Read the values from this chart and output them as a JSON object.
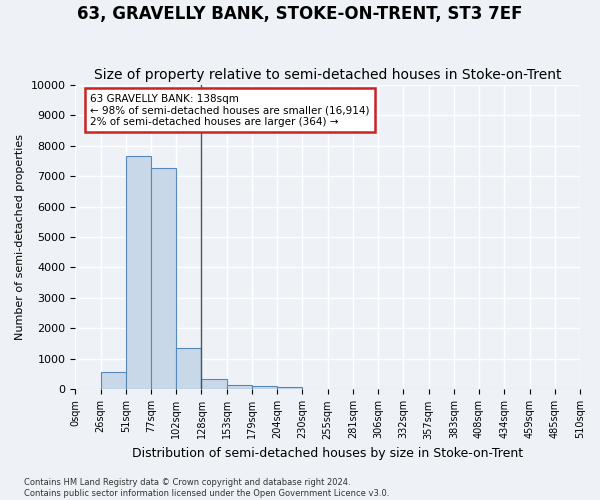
{
  "title": "63, GRAVELLY BANK, STOKE-ON-TRENT, ST3 7EF",
  "subtitle": "Size of property relative to semi-detached houses in Stoke-on-Trent",
  "xlabel": "Distribution of semi-detached houses by size in Stoke-on-Trent",
  "ylabel": "Number of semi-detached properties",
  "footer_line1": "Contains HM Land Registry data © Crown copyright and database right 2024.",
  "footer_line2": "Contains public sector information licensed under the Open Government Licence v3.0.",
  "bin_edges": [
    "0sqm",
    "26sqm",
    "51sqm",
    "77sqm",
    "102sqm",
    "128sqm",
    "153sqm",
    "179sqm",
    "204sqm",
    "230sqm",
    "255sqm",
    "281sqm",
    "306sqm",
    "332sqm",
    "357sqm",
    "383sqm",
    "408sqm",
    "434sqm",
    "459sqm",
    "485sqm",
    "510sqm"
  ],
  "bar_values": [
    0,
    580,
    7650,
    7250,
    1350,
    350,
    155,
    110,
    90,
    0,
    0,
    0,
    0,
    0,
    0,
    0,
    0,
    0,
    0,
    0
  ],
  "bar_color": "#c8d8e8",
  "bar_edge_color": "#5588bb",
  "annotation_text_line1": "63 GRAVELLY BANK: 138sqm",
  "annotation_text_line2": "← 98% of semi-detached houses are smaller (16,914)",
  "annotation_text_line3": "2% of semi-detached houses are larger (364) →",
  "annotation_box_facecolor": "#ffffff",
  "annotation_box_edgecolor": "#cc2222",
  "vline_x": 5,
  "ylim": [
    0,
    10000
  ],
  "yticks": [
    0,
    1000,
    2000,
    3000,
    4000,
    5000,
    6000,
    7000,
    8000,
    9000,
    10000
  ],
  "bg_color": "#eef2f7",
  "grid_color": "#ffffff",
  "title_fontsize": 12,
  "subtitle_fontsize": 10
}
